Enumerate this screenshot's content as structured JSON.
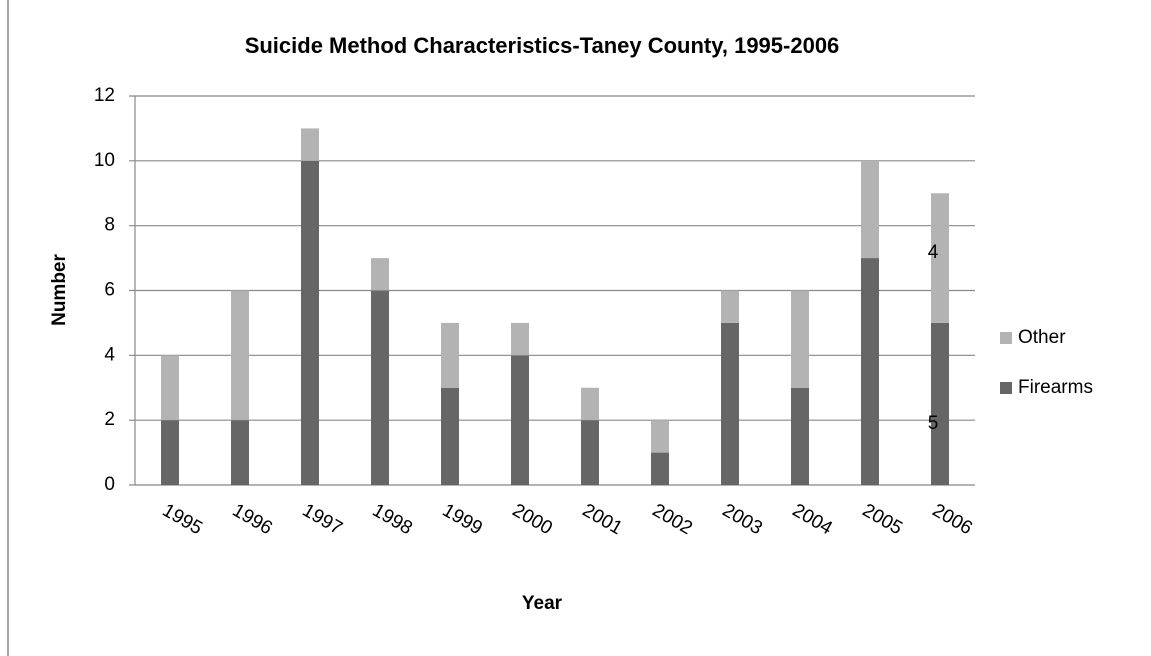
{
  "chart_data": {
    "type": "stacked_bar",
    "title": "Suicide Method Characteristics-Taney County, 1995-2006",
    "x_label": "Year",
    "y_label": "Number",
    "categories": [
      "1995",
      "1996",
      "1997",
      "1998",
      "1999",
      "2000",
      "2001",
      "2002",
      "2003",
      "2004",
      "2005",
      "2006"
    ],
    "series": [
      {
        "name": "Firearms",
        "color": "#666666",
        "values": [
          2,
          2,
          10,
          6,
          3,
          4,
          2,
          1,
          5,
          3,
          7,
          5
        ],
        "value_labels": [
          null,
          null,
          null,
          null,
          null,
          null,
          null,
          null,
          null,
          null,
          null,
          "5"
        ]
      },
      {
        "name": "Other",
        "color": "#b3b3b3",
        "values": [
          2,
          4,
          1,
          1,
          2,
          1,
          1,
          1,
          1,
          3,
          3,
          4
        ],
        "value_labels": [
          null,
          null,
          null,
          null,
          null,
          null,
          null,
          null,
          null,
          null,
          null,
          "4"
        ]
      }
    ],
    "ylim": [
      0,
      12
    ],
    "yticks": [
      0,
      2,
      4,
      6,
      8,
      10,
      12
    ],
    "grid": true,
    "legend": "right"
  }
}
